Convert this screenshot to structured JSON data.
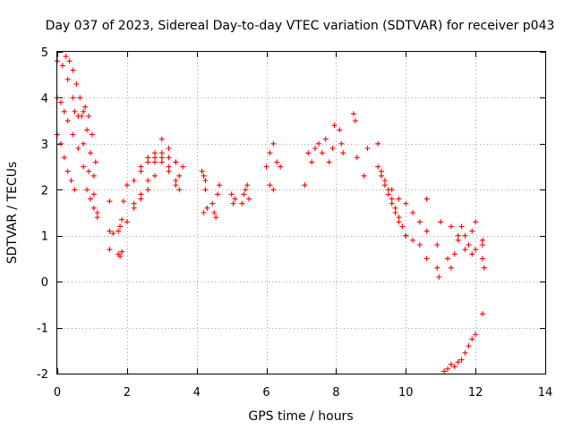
{
  "chart_data": {
    "type": "scatter",
    "title": "Day 037 of 2023, Sidereal Day-to-day VTEC variation (SDTVAR) for receiver p043",
    "xlabel": "GPS time / hours",
    "ylabel": "SDTVAR / TECUs",
    "xlim": [
      0,
      14
    ],
    "ylim": [
      -2,
      5
    ],
    "xticks": [
      0,
      2,
      4,
      6,
      8,
      10,
      12,
      14
    ],
    "yticks": [
      -2,
      -1,
      0,
      1,
      2,
      3,
      4,
      5
    ],
    "grid": true,
    "marker": "plus",
    "color": "#ff0000",
    "segments": [
      {
        "name": "track-a",
        "x": [
          0.0,
          0.15,
          0.3,
          0.45,
          0.6,
          0.75,
          0.9,
          1.05,
          1.15
        ],
        "y": [
          4.8,
          4.7,
          4.4,
          4.0,
          3.6,
          3.0,
          2.4,
          1.9,
          1.5
        ]
      },
      {
        "name": "track-b",
        "x": [
          0.0,
          0.1,
          0.2,
          0.3,
          0.4,
          0.5
        ],
        "y": [
          3.2,
          3.0,
          2.7,
          2.4,
          2.2,
          2.0
        ]
      },
      {
        "name": "track-c",
        "x": [
          0.0,
          0.1,
          0.2,
          0.3,
          0.45,
          0.6,
          0.75
        ],
        "y": [
          4.0,
          3.9,
          3.7,
          3.5,
          3.2,
          2.9,
          2.5
        ]
      },
      {
        "name": "track-d",
        "x": [
          0.25,
          0.35,
          0.45,
          0.55,
          0.65,
          0.75,
          0.85,
          0.95,
          1.05
        ],
        "y": [
          4.9,
          4.8,
          4.6,
          4.3,
          4.0,
          3.7,
          3.3,
          2.8,
          2.3
        ]
      },
      {
        "name": "track-e",
        "x": [
          0.5,
          0.6,
          0.7,
          0.8,
          0.9,
          1.0,
          1.1
        ],
        "y": [
          3.7,
          3.6,
          3.6,
          3.8,
          3.6,
          3.2,
          2.6
        ]
      },
      {
        "name": "track-f",
        "x": [
          0.85,
          0.95,
          1.05,
          1.15
        ],
        "y": [
          2.0,
          1.8,
          1.6,
          1.4
        ]
      },
      {
        "name": "isolated-1",
        "x": [
          1.5,
          1.5,
          1.5,
          1.6
        ],
        "y": [
          1.75,
          1.1,
          0.7,
          1.05
        ]
      },
      {
        "name": "track-g",
        "x": [
          1.75,
          1.8,
          1.85,
          1.9
        ],
        "y": [
          1.1,
          1.2,
          1.35,
          1.75
        ]
      },
      {
        "name": "track-h",
        "x": [
          1.75,
          1.8,
          1.85
        ],
        "y": [
          0.6,
          0.55,
          0.65
        ]
      },
      {
        "name": "arc-1",
        "x": [
          2.0,
          2.2,
          2.4,
          2.6,
          2.8,
          3.0,
          3.2,
          3.4,
          3.5
        ],
        "y": [
          1.3,
          1.6,
          1.9,
          2.2,
          2.6,
          3.1,
          2.9,
          2.6,
          2.3
        ]
      },
      {
        "name": "arc-2",
        "x": [
          2.0,
          2.2,
          2.4,
          2.6,
          2.8,
          3.0,
          3.2,
          3.4,
          3.6
        ],
        "y": [
          2.1,
          2.2,
          2.4,
          2.6,
          2.7,
          2.8,
          2.7,
          2.6,
          2.5
        ]
      },
      {
        "name": "arc-3",
        "x": [
          2.2,
          2.4,
          2.6,
          2.8,
          3.0,
          3.2,
          3.4,
          3.5
        ],
        "y": [
          1.7,
          1.8,
          2.0,
          2.3,
          2.6,
          2.4,
          2.1,
          2.0
        ]
      },
      {
        "name": "arc-4",
        "x": [
          2.4,
          2.6,
          2.8,
          3.0,
          3.2,
          3.4
        ],
        "y": [
          2.5,
          2.7,
          2.8,
          2.7,
          2.5,
          2.2
        ]
      },
      {
        "name": "cluster-4h",
        "x": [
          4.15,
          4.2,
          4.25,
          4.3,
          4.2,
          4.25
        ],
        "y": [
          2.4,
          2.3,
          2.0,
          1.6,
          1.5,
          2.2
        ]
      },
      {
        "name": "cluster-4.5h",
        "x": [
          4.45,
          4.5,
          4.55,
          4.6,
          4.65
        ],
        "y": [
          1.7,
          1.5,
          1.4,
          1.9,
          2.1
        ]
      },
      {
        "name": "cluster-5h",
        "x": [
          5.0,
          5.05,
          5.1
        ],
        "y": [
          1.9,
          1.7,
          1.8
        ]
      },
      {
        "name": "cluster-5.4h",
        "x": [
          5.3,
          5.35,
          5.4,
          5.45,
          5.5
        ],
        "y": [
          1.7,
          1.9,
          2.0,
          2.1,
          1.8
        ]
      },
      {
        "name": "cluster-6.2h",
        "x": [
          6.0,
          6.1,
          6.2,
          6.3,
          6.4,
          6.1,
          6.2
        ],
        "y": [
          2.5,
          2.8,
          3.0,
          2.6,
          2.5,
          2.1,
          2.0
        ]
      },
      {
        "name": "arc-7h-a",
        "x": [
          7.1,
          7.3,
          7.5,
          7.7,
          7.9
        ],
        "y": [
          2.1,
          2.6,
          3.0,
          3.1,
          2.9
        ]
      },
      {
        "name": "arc-7h-b",
        "x": [
          7.2,
          7.4,
          7.6,
          7.8
        ],
        "y": [
          2.8,
          2.9,
          2.8,
          2.6
        ]
      },
      {
        "name": "points-8h",
        "x": [
          7.95,
          8.1,
          8.15,
          8.2,
          8.5,
          8.55,
          8.6,
          8.8,
          8.9,
          9.2
        ],
        "y": [
          3.4,
          3.3,
          3.0,
          2.8,
          3.65,
          3.5,
          2.7,
          2.3,
          2.9,
          3.0
        ]
      },
      {
        "name": "track-9-10h-a",
        "x": [
          9.2,
          9.3,
          9.4,
          9.5,
          9.6,
          9.7,
          9.8,
          9.9,
          10.0
        ],
        "y": [
          2.5,
          2.4,
          2.2,
          2.0,
          1.8,
          1.6,
          1.4,
          1.2,
          1.0
        ]
      },
      {
        "name": "track-9-10h-b",
        "x": [
          9.3,
          9.4,
          9.5,
          9.6,
          9.7,
          9.8,
          10.0,
          10.2,
          10.4,
          10.6
        ],
        "y": [
          2.3,
          2.1,
          1.9,
          1.7,
          1.5,
          1.3,
          1.0,
          0.9,
          0.8,
          0.5
        ]
      },
      {
        "name": "track-9-10h-c",
        "x": [
          9.6,
          9.8,
          10.0,
          10.2,
          10.4,
          10.6
        ],
        "y": [
          2.0,
          1.8,
          1.7,
          1.5,
          1.3,
          1.1
        ]
      },
      {
        "name": "points-11h",
        "x": [
          10.6,
          10.9,
          10.95,
          11.0,
          10.9
        ],
        "y": [
          1.8,
          0.3,
          0.1,
          1.3,
          0.8
        ]
      },
      {
        "name": "loops-11.5h",
        "x": [
          11.2,
          11.3,
          11.4,
          11.5,
          11.6,
          11.7,
          11.8,
          11.9,
          12.0,
          11.3,
          11.5,
          11.7,
          11.9,
          12.0
        ],
        "y": [
          0.5,
          0.3,
          0.6,
          1.0,
          1.2,
          1.0,
          0.8,
          1.1,
          1.3,
          1.2,
          0.9,
          0.7,
          0.6,
          0.7
        ]
      },
      {
        "name": "track-negative",
        "x": [
          11.1,
          11.2,
          11.3,
          11.4,
          11.5,
          11.6,
          11.7,
          11.8,
          11.9,
          12.0
        ],
        "y": [
          -1.95,
          -1.9,
          -1.8,
          -1.85,
          -1.75,
          -1.7,
          -1.55,
          -1.4,
          -1.25,
          -1.15
        ]
      },
      {
        "name": "points-12h",
        "x": [
          12.2,
          12.2,
          12.2,
          12.25,
          12.2
        ],
        "y": [
          0.9,
          0.8,
          0.5,
          0.3,
          -0.7
        ]
      }
    ]
  }
}
